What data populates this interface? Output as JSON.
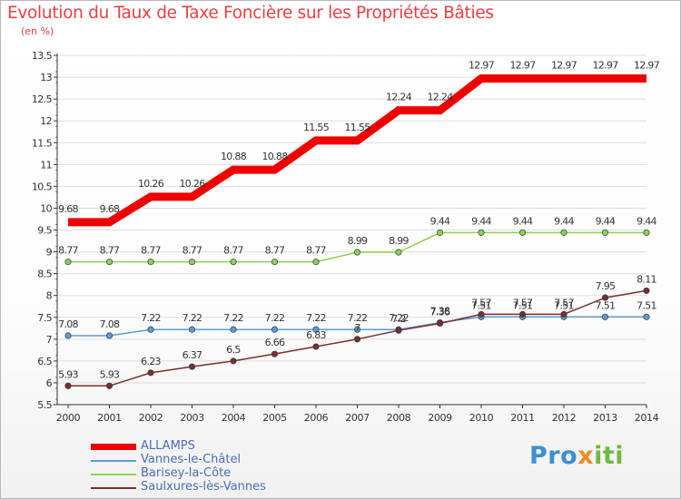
{
  "title": "Evolution du Taux de Taxe Foncière sur les Propriétés Bâties",
  "unit_label": "(en %)",
  "logo": {
    "part1": "Pro",
    "part2": "x",
    "part3": "iti"
  },
  "colors": {
    "title": "#ee3e3e",
    "axis": "#333333",
    "grid": "#dddddd",
    "legend_text": "#4a6fb5"
  },
  "chart_data": {
    "type": "line",
    "title": "Evolution du Taux de Taxe Foncière sur les Propriétés Bâties",
    "ylabel": "(en %)",
    "xlabel": "",
    "x": [
      "2000",
      "2001",
      "2002",
      "2003",
      "2004",
      "2005",
      "2006",
      "2007",
      "2008",
      "2009",
      "2010",
      "2011",
      "2012",
      "2013",
      "2014"
    ],
    "ylim": [
      5.5,
      13.5
    ],
    "yticks": [
      "5.5",
      "6",
      "6.5",
      "7",
      "7.5",
      "8",
      "8.5",
      "9",
      "9.5",
      "10",
      "10.5",
      "11",
      "11.5",
      "12",
      "12.5",
      "13",
      "13.5"
    ],
    "grid": "horizontal",
    "legend_position": "bottom-left",
    "series": [
      {
        "name": "ALLAMPS",
        "color": "#ee0000",
        "width": 9,
        "marker": false,
        "values": [
          9.68,
          9.68,
          10.26,
          10.26,
          10.88,
          10.88,
          11.55,
          11.55,
          12.24,
          12.24,
          12.97,
          12.97,
          12.97,
          12.97,
          12.97
        ],
        "labels": [
          "9.68",
          "9.68",
          "10.26",
          "10.26",
          "10.88",
          "10.88",
          "11.55",
          "11.55",
          "12.24",
          "12.24",
          "12.97",
          "12.97",
          "12.97",
          "12.97",
          "12.97"
        ]
      },
      {
        "name": "Vannes-le-Châtel",
        "color": "#5d9bd2",
        "width": 1.5,
        "marker": true,
        "values": [
          7.08,
          7.08,
          7.22,
          7.22,
          7.22,
          7.22,
          7.22,
          7.22,
          7.22,
          7.38,
          7.51,
          7.51,
          7.51,
          7.51,
          7.51
        ],
        "labels": [
          "7.08",
          "7.08",
          "7.22",
          "7.22",
          "7.22",
          "7.22",
          "7.22",
          "7.22",
          "7.22",
          "7.38",
          "7.51",
          "7.51",
          "7.51",
          "7.51",
          "7.51"
        ]
      },
      {
        "name": "Barisey-la-Côte",
        "color": "#8ed150",
        "width": 1.5,
        "marker": true,
        "values": [
          8.77,
          8.77,
          8.77,
          8.77,
          8.77,
          8.77,
          8.77,
          8.99,
          8.99,
          9.44,
          9.44,
          9.44,
          9.44,
          9.44,
          9.44
        ],
        "labels": [
          "8.77",
          "8.77",
          "8.77",
          "8.77",
          "8.77",
          "8.77",
          "8.77",
          "8.99",
          "8.99",
          "9.44",
          "9.44",
          "9.44",
          "9.44",
          "9.44",
          "9.44"
        ]
      },
      {
        "name": "Saulxures-lès-Vannes",
        "color": "#7a2e2e",
        "width": 1.5,
        "marker": true,
        "values": [
          5.93,
          5.93,
          6.23,
          6.37,
          6.5,
          6.66,
          6.83,
          7.0,
          7.2,
          7.36,
          7.57,
          7.57,
          7.57,
          7.95,
          8.11
        ],
        "labels": [
          "5.93",
          "5.93",
          "6.23",
          "6.37",
          "6.5",
          "6.66",
          "6.83",
          "7",
          "7.2",
          "7.36",
          "7.57",
          "7.57",
          "7.57",
          "7.95",
          "8.11"
        ]
      }
    ]
  }
}
